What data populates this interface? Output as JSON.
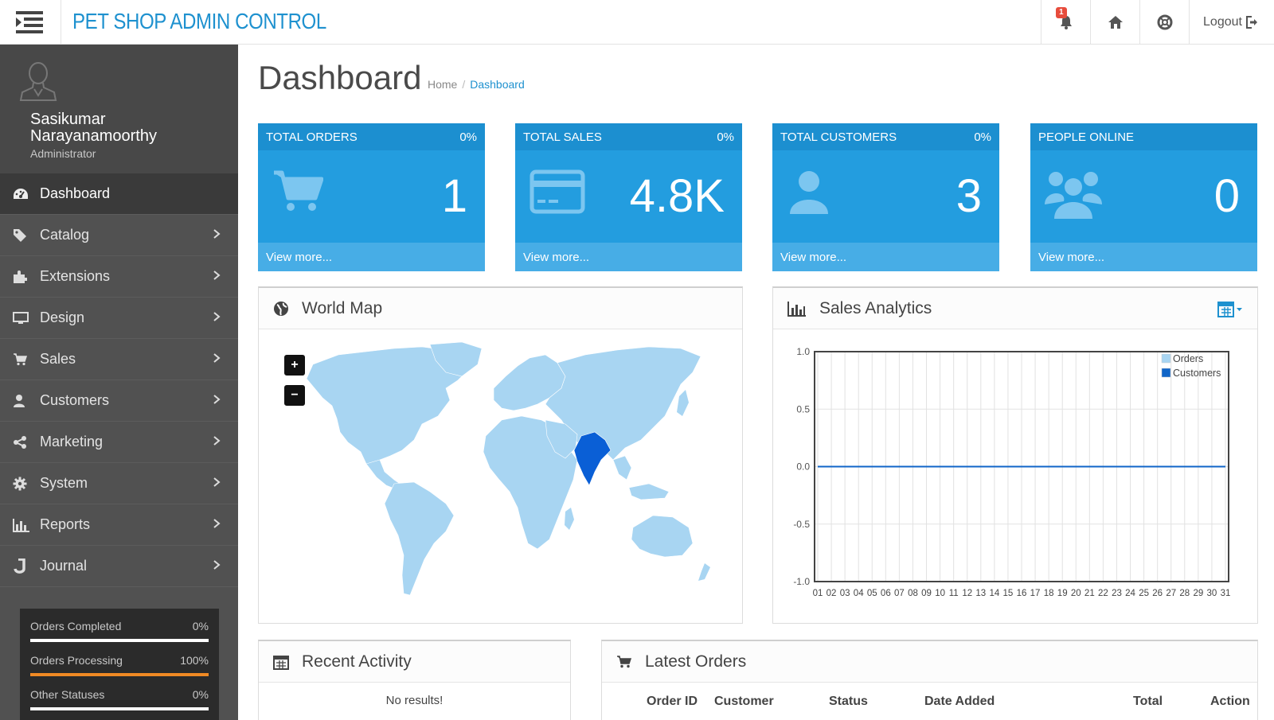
{
  "header": {
    "brand": "PET SHOP ADMIN CONTROL",
    "notification_count": "1",
    "logout_label": "Logout"
  },
  "profile": {
    "name": "Sasikumar Narayanamoorthy",
    "role": "Administrator"
  },
  "sidebar": {
    "items": [
      {
        "label": "Dashboard",
        "icon": "dashboard-icon"
      },
      {
        "label": "Catalog",
        "icon": "tags-icon"
      },
      {
        "label": "Extensions",
        "icon": "puzzle-icon"
      },
      {
        "label": "Design",
        "icon": "monitor-icon"
      },
      {
        "label": "Sales",
        "icon": "cart-icon"
      },
      {
        "label": "Customers",
        "icon": "user-icon"
      },
      {
        "label": "Marketing",
        "icon": "share-icon"
      },
      {
        "label": "System",
        "icon": "gear-icon"
      },
      {
        "label": "Reports",
        "icon": "bar-chart-icon"
      },
      {
        "label": "Journal",
        "icon": "journal-icon"
      }
    ]
  },
  "stats": [
    {
      "label": "Orders Completed",
      "value": "0%"
    },
    {
      "label": "Orders Processing",
      "value": "100%"
    },
    {
      "label": "Other Statuses",
      "value": "0%"
    }
  ],
  "page": {
    "title": "Dashboard",
    "breadcrumb_home": "Home",
    "breadcrumb_current": "Dashboard"
  },
  "tiles": [
    {
      "title": "TOTAL ORDERS",
      "percent": "0%",
      "value": "1",
      "footer": "View more..."
    },
    {
      "title": "TOTAL SALES",
      "percent": "0%",
      "value": "4.8K",
      "footer": "View more..."
    },
    {
      "title": "TOTAL CUSTOMERS",
      "percent": "0%",
      "value": "3",
      "footer": "View more..."
    },
    {
      "title": "PEOPLE ONLINE",
      "percent": "",
      "value": "0",
      "footer": "View more..."
    }
  ],
  "world_map": {
    "title": "World Map",
    "zoom_in": "+",
    "zoom_out": "−",
    "highlight_color": "#0a5fd6",
    "land_color": "#a8d5f2"
  },
  "sales_analytics": {
    "title": "Sales Analytics"
  },
  "chart_data": {
    "type": "line",
    "title": "Sales Analytics",
    "x": [
      "01",
      "02",
      "03",
      "04",
      "05",
      "06",
      "07",
      "08",
      "09",
      "10",
      "11",
      "12",
      "13",
      "14",
      "15",
      "16",
      "17",
      "18",
      "19",
      "20",
      "21",
      "22",
      "23",
      "24",
      "25",
      "26",
      "27",
      "28",
      "29",
      "30",
      "31"
    ],
    "series": [
      {
        "name": "Orders",
        "color": "#a8d5f2",
        "values": [
          0,
          0,
          0,
          0,
          0,
          0,
          0,
          0,
          0,
          0,
          0,
          0,
          0,
          0,
          0,
          0,
          0,
          0,
          0,
          0,
          0,
          0,
          0,
          0,
          0,
          0,
          0,
          0,
          0,
          0,
          0
        ]
      },
      {
        "name": "Customers",
        "color": "#1065c8",
        "values": [
          0,
          0,
          0,
          0,
          0,
          0,
          0,
          0,
          0,
          0,
          0,
          0,
          0,
          0,
          0,
          0,
          0,
          0,
          0,
          0,
          0,
          0,
          0,
          0,
          0,
          0,
          0,
          0,
          0,
          0,
          0
        ]
      }
    ],
    "y_ticks": [
      "1.0",
      "0.5",
      "0.0",
      "-0.5",
      "-1.0"
    ],
    "ylim": [
      -1,
      1
    ],
    "legend": "top-right",
    "grid": true
  },
  "recent_activity": {
    "title": "Recent Activity",
    "empty": "No results!"
  },
  "latest_orders": {
    "title": "Latest Orders",
    "columns": [
      "Order ID",
      "Customer",
      "Status",
      "Date Added",
      "Total",
      "Action"
    ]
  }
}
